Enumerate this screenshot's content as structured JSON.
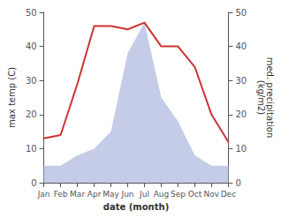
{
  "chart_data": {
    "type": "line",
    "xlabel": "date (month)",
    "ylabel": "max temp (C)",
    "y2label": "med. precipitation\n(kg/m2)",
    "categories": [
      "Jan",
      "Feb",
      "Mar",
      "Apr",
      "May",
      "Jun",
      "Jul",
      "Aug",
      "Sep",
      "Oct",
      "Nov",
      "Dec"
    ],
    "series": [
      {
        "type": "area",
        "color": "#c5cce8",
        "axis": "y2",
        "values": [
          5,
          5,
          8,
          10,
          15,
          38,
          47,
          25,
          18,
          8,
          5,
          5
        ]
      },
      {
        "type": "line",
        "color": "#cc3333",
        "values": [
          13,
          14,
          29,
          46,
          46,
          45,
          47,
          40,
          40,
          34,
          20,
          12
        ]
      }
    ],
    "ylim": [
      0,
      50
    ],
    "yticks": [
      0,
      10,
      20,
      30,
      40,
      50
    ],
    "y2lim": [
      0,
      50
    ],
    "y2ticks": [
      0,
      10,
      20,
      30,
      40,
      50
    ],
    "grid": false
  }
}
